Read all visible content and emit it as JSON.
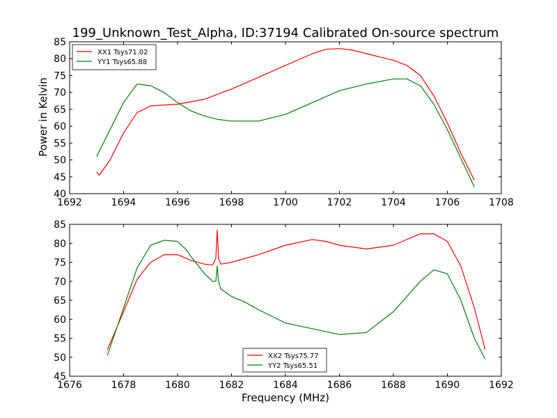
{
  "chart_data": [
    {
      "type": "line",
      "title": "199_Unknown_Test_Alpha, ID:37194 Calibrated On-source spectrum",
      "xlabel": "",
      "ylabel": "Power in Kelvin",
      "xlim": [
        1692,
        1708
      ],
      "ylim": [
        40,
        85
      ],
      "xticks": [
        1692,
        1694,
        1696,
        1698,
        1700,
        1702,
        1704,
        1706,
        1708
      ],
      "yticks": [
        40,
        45,
        50,
        55,
        60,
        65,
        70,
        75,
        80,
        85
      ],
      "legend": "upper-left",
      "series": [
        {
          "name": "XX1 Tsys71.02",
          "color": "#ff0000",
          "x": [
            1693.0,
            1693.1,
            1693.5,
            1694.0,
            1694.5,
            1695.0,
            1696.0,
            1697.0,
            1698.0,
            1699.0,
            1700.0,
            1701.0,
            1701.5,
            1702.0,
            1702.5,
            1703.0,
            1703.5,
            1704.0,
            1704.5,
            1705.0,
            1705.5,
            1706.0,
            1706.5,
            1707.0
          ],
          "y": [
            46.5,
            45.5,
            50.0,
            58.0,
            64.0,
            66.0,
            66.5,
            68.0,
            71.0,
            74.5,
            78.0,
            81.5,
            82.8,
            83.0,
            82.5,
            81.5,
            80.5,
            79.5,
            78.0,
            75.0,
            69.0,
            61.0,
            52.0,
            44.0
          ]
        },
        {
          "name": "YY1 Tsys65.88",
          "color": "#008000",
          "x": [
            1693.0,
            1693.5,
            1694.0,
            1694.5,
            1695.0,
            1695.5,
            1696.0,
            1696.5,
            1697.0,
            1697.5,
            1698.0,
            1699.0,
            1700.0,
            1701.0,
            1702.0,
            1703.0,
            1704.0,
            1704.5,
            1705.0,
            1705.5,
            1706.0,
            1706.5,
            1707.0
          ],
          "y": [
            51.0,
            59.0,
            67.0,
            72.5,
            72.0,
            70.0,
            67.0,
            64.5,
            63.0,
            62.0,
            61.5,
            61.5,
            63.5,
            67.0,
            70.5,
            72.5,
            74.0,
            74.0,
            72.0,
            66.5,
            59.0,
            50.5,
            42.0
          ]
        }
      ]
    },
    {
      "type": "line",
      "title": "",
      "xlabel": "Frequency (MHz)",
      "ylabel": "",
      "xlim": [
        1676,
        1692
      ],
      "ylim": [
        45,
        85
      ],
      "xticks": [
        1676,
        1678,
        1680,
        1682,
        1684,
        1686,
        1688,
        1690,
        1692
      ],
      "yticks": [
        45,
        50,
        55,
        60,
        65,
        70,
        75,
        80,
        85
      ],
      "legend": "lower-center",
      "series": [
        {
          "name": "XX2 Tsys75.77",
          "color": "#ff0000",
          "x": [
            1677.4,
            1678.0,
            1678.5,
            1679.0,
            1679.5,
            1680.0,
            1680.5,
            1681.0,
            1681.3,
            1681.42,
            1681.47,
            1681.52,
            1681.6,
            1682.0,
            1683.0,
            1684.0,
            1685.0,
            1685.5,
            1686.0,
            1687.0,
            1688.0,
            1689.0,
            1689.5,
            1690.0,
            1690.5,
            1691.0,
            1691.4
          ],
          "y": [
            52.0,
            62.0,
            70.5,
            75.0,
            77.0,
            77.0,
            75.5,
            74.5,
            74.3,
            76.0,
            83.5,
            76.0,
            74.5,
            75.0,
            77.0,
            79.5,
            81.0,
            80.5,
            79.5,
            78.5,
            79.5,
            82.5,
            82.5,
            80.5,
            74.0,
            63.0,
            52.0
          ]
        },
        {
          "name": "YY2 Tsys65.51",
          "color": "#008000",
          "x": [
            1677.4,
            1678.0,
            1678.5,
            1679.0,
            1679.5,
            1680.0,
            1680.3,
            1680.5,
            1681.0,
            1681.3,
            1681.42,
            1681.47,
            1681.52,
            1681.6,
            1682.0,
            1682.5,
            1683.0,
            1684.0,
            1685.0,
            1686.0,
            1687.0,
            1688.0,
            1689.0,
            1689.5,
            1690.0,
            1690.5,
            1691.0,
            1691.4
          ],
          "y": [
            50.5,
            63.0,
            73.5,
            79.5,
            80.8,
            80.5,
            78.5,
            76.5,
            72.0,
            70.0,
            70.0,
            74.0,
            70.0,
            68.0,
            66.0,
            64.5,
            62.5,
            59.0,
            57.5,
            56.0,
            56.5,
            62.0,
            70.0,
            73.0,
            72.0,
            65.0,
            55.0,
            49.5
          ]
        }
      ]
    }
  ]
}
